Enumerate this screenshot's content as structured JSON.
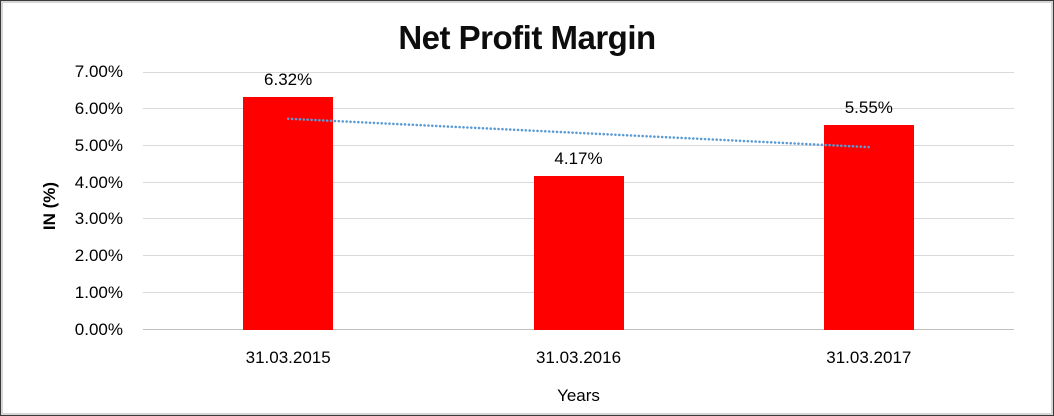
{
  "chart_data": {
    "type": "bar",
    "title": "Net Profit Margin",
    "xlabel": "Years",
    "ylabel": "IN (%)",
    "categories": [
      "31.03.2015",
      "31.03.2016",
      "31.03.2017"
    ],
    "values": [
      6.32,
      4.17,
      5.55
    ],
    "data_labels": [
      "6.32%",
      "4.17%",
      "5.55%"
    ],
    "ylim": [
      0,
      7
    ],
    "ytick_step": 1,
    "ytick_labels": [
      "0.00%",
      "1.00%",
      "2.00%",
      "3.00%",
      "4.00%",
      "5.00%",
      "6.00%",
      "7.00%"
    ],
    "grid": true,
    "legend": false,
    "bar_color": "#FF0000",
    "gridline_color": "#D9D9D9",
    "axis_line_color": "#BFBFBF",
    "text_color": "#000000",
    "trendline": {
      "type": "linear",
      "style": "dotted",
      "color": "#5B9BD5"
    }
  }
}
